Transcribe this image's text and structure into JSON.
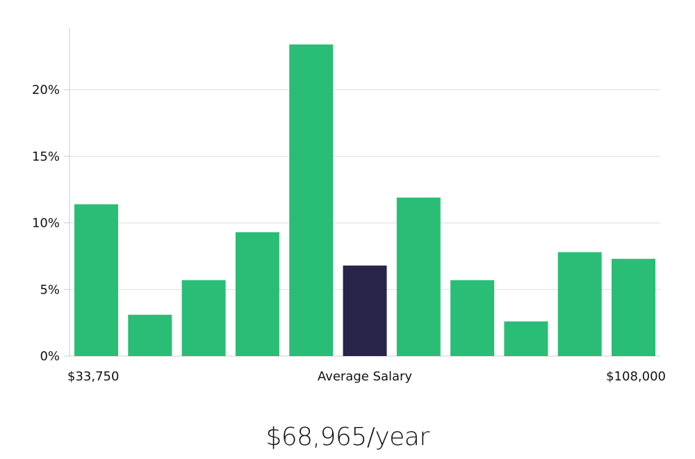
{
  "chart_data": {
    "type": "bar",
    "values": [
      11.4,
      3.1,
      5.7,
      9.3,
      23.4,
      6.8,
      11.9,
      5.7,
      2.6,
      7.8,
      7.3
    ],
    "highlight_index": 5,
    "ylim": [
      0,
      25
    ],
    "yticks": [
      {
        "value": 0,
        "label": "0%"
      },
      {
        "value": 5,
        "label": "5%"
      },
      {
        "value": 10,
        "label": "10%"
      },
      {
        "value": 15,
        "label": "15%"
      },
      {
        "value": 20,
        "label": "20%"
      }
    ],
    "x_labels": {
      "min": "$33,750",
      "middle": "Average Salary",
      "max": "$108,000"
    },
    "grid": true,
    "colors": {
      "bar": "#2abd76",
      "highlight": "#28244a",
      "grid": "#dddddd",
      "axis": "#cccccc"
    }
  },
  "salary_text": "$68,965/year"
}
